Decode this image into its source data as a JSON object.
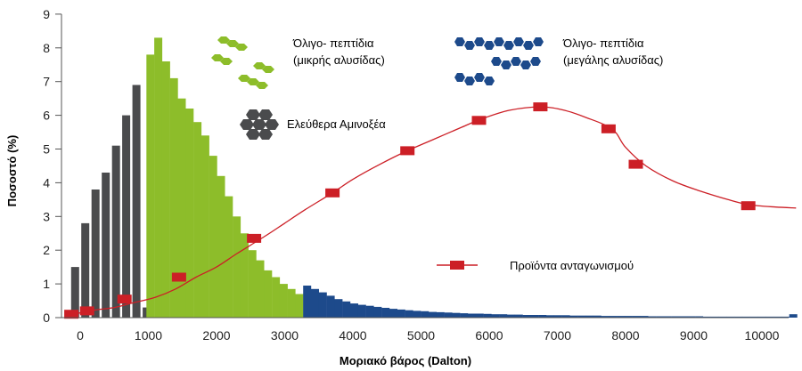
{
  "chart_data": {
    "type": "bar+line",
    "xlabel": "Μοριακό βάρος (Dalton)",
    "ylabel": "Ποσοστό (%)",
    "xlim": [
      -220,
      10600
    ],
    "ylim": [
      0,
      9
    ],
    "x_ticks": [
      0,
      1000,
      2000,
      3000,
      4000,
      5000,
      6000,
      7000,
      8000,
      9000,
      10000
    ],
    "x_tick_labels": [
      "0",
      "1000",
      "2000",
      "3000",
      "4000",
      "5000",
      "6000",
      "7000",
      "8000",
      "9000",
      "10000"
    ],
    "y_ticks": [
      0,
      1,
      2,
      3,
      4,
      5,
      6,
      7,
      8,
      9
    ],
    "y_tick_labels": [
      "0",
      "1",
      "2",
      "3",
      "4",
      "5",
      "6",
      "7",
      "8",
      "9"
    ],
    "grid": false,
    "colors": {
      "free": "#4a4b4d",
      "short": "#8dbd2a",
      "long": "#1d4a8b",
      "competitor": "#cc1f26"
    },
    "series": [
      {
        "name": "Ελεύθερα Αμινοξέα",
        "kind": "bar",
        "x": [
          -75,
          75,
          225,
          375,
          525,
          675,
          825,
          975
        ],
        "values": [
          1.5,
          2.8,
          3.8,
          4.3,
          5.1,
          6.0,
          6.9,
          0.3
        ]
      },
      {
        "name": "Όλιγο- πεπτίδια (μικρής αλυσίδας)",
        "kind": "bar",
        "x": [
          1030,
          1145,
          1260,
          1375,
          1490,
          1605,
          1720,
          1835,
          1950,
          2065,
          2180,
          2295,
          2410,
          2525,
          2640,
          2755,
          2870,
          2985,
          3100,
          3215
        ],
        "values": [
          7.8,
          8.3,
          7.6,
          7.1,
          6.5,
          6.2,
          5.8,
          5.4,
          4.8,
          4.2,
          3.6,
          3.0,
          2.5,
          2.0,
          1.7,
          1.4,
          1.2,
          1.0,
          0.85,
          0.7
        ]
      },
      {
        "name": "Όλιγο- πεπτίδια (μεγάλης αλυσίδας)",
        "kind": "bar",
        "x": [
          3330,
          3445,
          3560,
          3675,
          3790,
          3905,
          4020,
          4135,
          4250,
          4365,
          4480,
          4595,
          4710,
          4825,
          4940,
          5055,
          5170,
          5285,
          5400,
          5515,
          5630,
          5745,
          5860,
          5975,
          6090,
          6205,
          6320,
          6435,
          6550,
          6665,
          6780,
          6895,
          7010,
          7125,
          7240,
          7355,
          7470,
          7585,
          7700,
          7815,
          7930,
          8045,
          8160,
          8275,
          8390,
          8505,
          8620,
          8735,
          8850,
          8965,
          9080,
          9195,
          9310,
          9425,
          9540,
          9655,
          9770,
          9885,
          10000,
          10115,
          10230,
          10345,
          10460
        ],
        "values": [
          0.95,
          0.85,
          0.75,
          0.65,
          0.55,
          0.48,
          0.42,
          0.38,
          0.35,
          0.32,
          0.29,
          0.26,
          0.24,
          0.22,
          0.2,
          0.19,
          0.17,
          0.16,
          0.15,
          0.14,
          0.13,
          0.12,
          0.12,
          0.11,
          0.1,
          0.1,
          0.09,
          0.09,
          0.08,
          0.08,
          0.08,
          0.07,
          0.07,
          0.07,
          0.06,
          0.06,
          0.06,
          0.06,
          0.05,
          0.05,
          0.05,
          0.05,
          0.05,
          0.05,
          0.04,
          0.04,
          0.04,
          0.04,
          0.04,
          0.04,
          0.04,
          0.03,
          0.03,
          0.03,
          0.03,
          0.03,
          0.03,
          0.03,
          0.03,
          0.03,
          0.03,
          0.03,
          0.1
        ]
      },
      {
        "name": "Προϊόντα ανταγωνισμού",
        "kind": "line",
        "curve_x": [
          -150,
          200,
          500,
          800,
          1100,
          1400,
          1700,
          2000,
          2300,
          2700,
          3000,
          3300,
          3700,
          4000,
          4400,
          4800,
          5200,
          5600,
          5900,
          6300,
          6750,
          7100,
          7400,
          7800,
          8000,
          8300,
          8700,
          9100,
          9500,
          9800,
          10200,
          10500
        ],
        "curve_y": [
          0.08,
          0.22,
          0.3,
          0.45,
          0.6,
          0.85,
          1.2,
          1.5,
          1.9,
          2.4,
          2.8,
          3.2,
          3.7,
          4.1,
          4.55,
          4.95,
          5.3,
          5.65,
          5.9,
          6.15,
          6.25,
          6.15,
          5.95,
          5.6,
          5.05,
          4.5,
          4.05,
          3.75,
          3.5,
          3.35,
          3.28,
          3.25
        ],
        "marker_x": [
          -130,
          100,
          650,
          1450,
          2550,
          3700,
          4800,
          5850,
          6750,
          7750,
          8150,
          9800
        ],
        "marker_y": [
          0.1,
          0.2,
          0.55,
          1.2,
          2.35,
          3.7,
          4.95,
          5.85,
          6.25,
          5.6,
          4.55,
          3.32
        ]
      }
    ],
    "legend": {
      "short": {
        "line1": "Όλιγο- πεπτίδια",
        "line2": "(μικρής αλυσίδας)"
      },
      "long": {
        "line1": "Όλιγο- πεπτίδια",
        "line2": "(μεγάλης αλυσίδας)"
      },
      "free": {
        "label": "Ελεύθερα Αμινοξέα"
      },
      "competitor": {
        "label": "Προϊόντα ανταγωνισμού"
      }
    }
  }
}
